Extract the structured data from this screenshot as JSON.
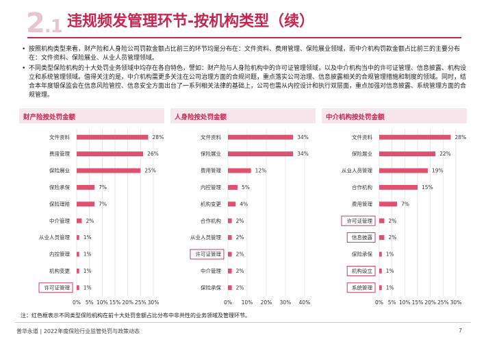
{
  "header": {
    "section_number": "2",
    "section_sub": ".1",
    "title": "违规频发管理环节-按机构类型（续）"
  },
  "bullets": [
    "按照机构类型来看，财产险和人身险公司罚款金额占比前三的环节均是分布在：文件资料、费用管理、保险展业领域，而中介机构罚款金额占比前三的主要分布在：文件资料、保险展业、从业人员管理领域。",
    "不同类型保险机构的十大处罚业务领域中均存在各自特色，譬如：财产险与人身险机构中的许可证管理领域，以及中介机构当中的许可证管理、信息披露、机构设立和系统管理领域。值得关注的是，中介机构需更多关注在公司治理方面的合规问题，重点落实公司治理、信息披露相关的合规管理措施和制度的领域。同时，结合本年度银保监会在信息风险管控、信息安全方面出台了一系列相关法律的基础上，公司也需从内控设计和执行双层面，重点加强对信息披露、系统管理方面的合规管理。"
  ],
  "colors": {
    "bar": "#e0506f",
    "accent": "#c7254e",
    "highlight_box": "#c7254e",
    "grid": "#d9d9d9"
  },
  "chart_data": [
    {
      "type": "bar",
      "orientation": "horizontal",
      "title": "财产险按处罚金额",
      "categories": [
        "文件资料",
        "费用管理",
        "保险展业",
        "保险承保",
        "保险理赔",
        "中介管理",
        "从业人员管理",
        "内控管理",
        "机构变更",
        "许可证管理"
      ],
      "values": [
        28,
        26,
        25,
        7,
        7,
        2,
        1,
        1,
        1,
        1
      ],
      "value_labels": [
        "28%",
        "26%",
        "25%",
        "7%",
        "7%",
        "2%",
        "1%",
        "1%",
        "1%",
        "1%"
      ],
      "highlighted": [
        "许可证管理"
      ],
      "xlim": [
        0,
        30
      ],
      "xticks": [
        "0%",
        "5%",
        "10%",
        "15%",
        "20%",
        "25%",
        "30%"
      ],
      "grid": true
    },
    {
      "type": "bar",
      "orientation": "horizontal",
      "title": "人身险按处罚金额",
      "categories": [
        "文件资料",
        "保险展业",
        "费用管理",
        "内控管理",
        "机构变更",
        "合作机构",
        "从业人员管理",
        "许可证管理",
        "中介管理",
        "保险承保"
      ],
      "values": [
        34,
        34,
        12,
        5,
        4,
        2,
        2,
        2,
        2,
        2
      ],
      "value_labels": [
        "34%",
        "34%",
        "12%",
        "5%",
        "4%",
        "2%",
        "2%",
        "2%",
        "2%",
        "2%"
      ],
      "highlighted": [
        "许可证管理"
      ],
      "xlim": [
        0,
        40
      ],
      "xticks": [
        "0%",
        "10%",
        "20%",
        "30%",
        "40%"
      ],
      "grid": true
    },
    {
      "type": "bar",
      "orientation": "horizontal",
      "title": "中介机构按处罚金额",
      "categories": [
        "文件资料",
        "保险展业",
        "从业人员管理",
        "合作机构",
        "费用管理",
        "许可证管理",
        "信息披露",
        "保险承保",
        "机构设立",
        "系统管理"
      ],
      "values": [
        28,
        22,
        19,
        15,
        7,
        2,
        2,
        1,
        1,
        1
      ],
      "value_labels": [
        "28%",
        "22%",
        "19%",
        "15%",
        "7%",
        "2%",
        "2%",
        "1%",
        "1%",
        "1%"
      ],
      "highlighted": [
        "许可证管理",
        "信息披露",
        "机构设立",
        "系统管理"
      ],
      "xlim": [
        0,
        30
      ],
      "xticks": [
        "0%",
        "5%",
        "10%",
        "15%",
        "20%",
        "25%",
        "30%"
      ],
      "grid": true
    }
  ],
  "note": "注：红色框表示不同类型保险机构在前十大处罚金额占比分布中非共性的业务领域及管理环节。",
  "footer": {
    "text": "普华永道 | 2022年度保险行业监管处罚与政策动态",
    "page": "7"
  }
}
